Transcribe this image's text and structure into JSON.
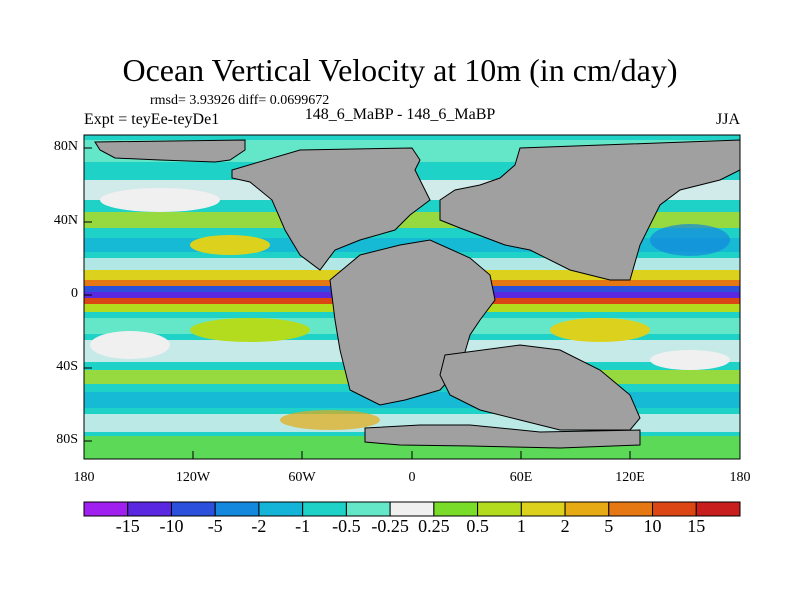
{
  "title": "Ocean Vertical Velocity at 10m (in cm/day)",
  "stats": "rmsd= 3.93926 diff= 0.0699672",
  "experiment": "Expt = teyEe-teyDe1",
  "comparison": "148_6_MaBP - 148_6_MaBP",
  "season": "JJA",
  "chart_data": {
    "type": "heatmap",
    "title": "Ocean Vertical Velocity at 10m (in cm/day)",
    "units": "cm/day",
    "x_range": [
      -180,
      180
    ],
    "y_range": [
      -90,
      90
    ],
    "y_ticks": [
      "80N",
      "40N",
      "0",
      "40S",
      "80S"
    ],
    "x_ticks": [
      "180",
      "120W",
      "60W",
      "0",
      "60E",
      "120E",
      "180"
    ],
    "colorbar_labels": [
      "-15",
      "-10",
      "-5",
      "-2",
      "-1",
      "-0.5",
      "-0.25",
      "0.25",
      "0.5",
      "1",
      "2",
      "5",
      "10",
      "15"
    ],
    "colorbar_colors": [
      "#a020f0",
      "#5a28e0",
      "#2a50dc",
      "#1488dc",
      "#14b4d8",
      "#1ed2c8",
      "#64e6c8",
      "#f0f0f0",
      "#78dc28",
      "#b4dc1e",
      "#dcd21e",
      "#e6aa14",
      "#e67814",
      "#dc4614",
      "#c81e1e"
    ],
    "land_color": "#a0a0a0"
  }
}
